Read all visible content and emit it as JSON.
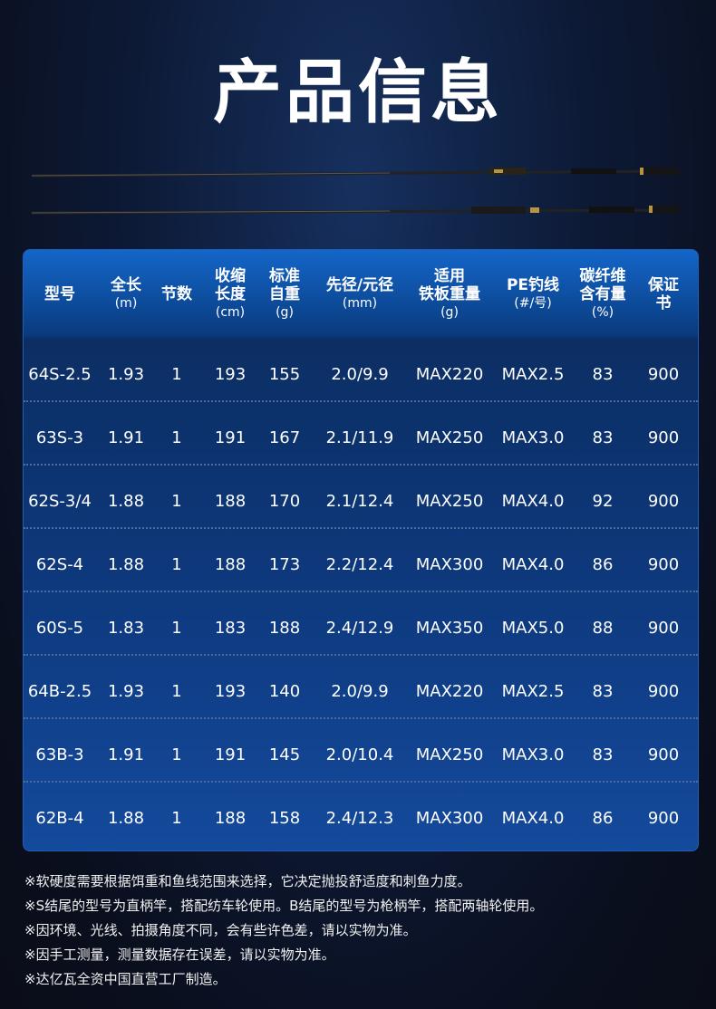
{
  "title": "产品信息",
  "table": {
    "headers": [
      {
        "main": "型号",
        "unit": ""
      },
      {
        "main": "全长",
        "unit": "(m)"
      },
      {
        "main": "节数",
        "unit": ""
      },
      {
        "main": "收缩\n长度",
        "unit": "(cm)"
      },
      {
        "main": "标准\n自重",
        "unit": "(g)"
      },
      {
        "main": "先径/元径",
        "unit": "(mm)"
      },
      {
        "main": "适用\n铁板重量",
        "unit": "(g)"
      },
      {
        "main": "PE钓线",
        "unit": "(#/号)"
      },
      {
        "main": "碳纤维\n含有量",
        "unit": "(%)"
      },
      {
        "main": "保证书",
        "unit": ""
      }
    ],
    "rows": [
      [
        "64S-2.5",
        "1.93",
        "1",
        "193",
        "155",
        "2.0/9.9",
        "MAX220",
        "MAX2.5",
        "83",
        "900"
      ],
      [
        "63S-3",
        "1.91",
        "1",
        "191",
        "167",
        "2.1/11.9",
        "MAX250",
        "MAX3.0",
        "83",
        "900"
      ],
      [
        "62S-3/4",
        "1.88",
        "1",
        "188",
        "170",
        "2.1/12.4",
        "MAX250",
        "MAX4.0",
        "92",
        "900"
      ],
      [
        "62S-4",
        "1.88",
        "1",
        "188",
        "173",
        "2.2/12.4",
        "MAX300",
        "MAX4.0",
        "86",
        "900"
      ],
      [
        "60S-5",
        "1.83",
        "1",
        "183",
        "188",
        "2.4/12.9",
        "MAX350",
        "MAX5.0",
        "88",
        "900"
      ],
      [
        "64B-2.5",
        "1.93",
        "1",
        "193",
        "140",
        "2.0/9.9",
        "MAX220",
        "MAX2.5",
        "83",
        "900"
      ],
      [
        "63B-3",
        "1.91",
        "1",
        "191",
        "145",
        "2.0/10.4",
        "MAX250",
        "MAX3.0",
        "83",
        "900"
      ],
      [
        "62B-4",
        "1.88",
        "1",
        "188",
        "158",
        "2.4/12.3",
        "MAX300",
        "MAX4.0",
        "86",
        "900"
      ]
    ]
  },
  "notes": [
    "※软硬度需要根据饵重和鱼线范围来选择，它决定抛投舒适度和刺鱼力度。",
    "※S结尾的型号为直柄竿，搭配纺车轮使用。B结尾的型号为枪柄竿，搭配两轴轮使用。",
    "※因环境、光线、拍摄角度不同，会有些许色差，请以实物为准。",
    "※因手工测量，测量数据存在误差，请以实物为准。",
    "※达亿瓦全资中国直营工厂制造。"
  ]
}
